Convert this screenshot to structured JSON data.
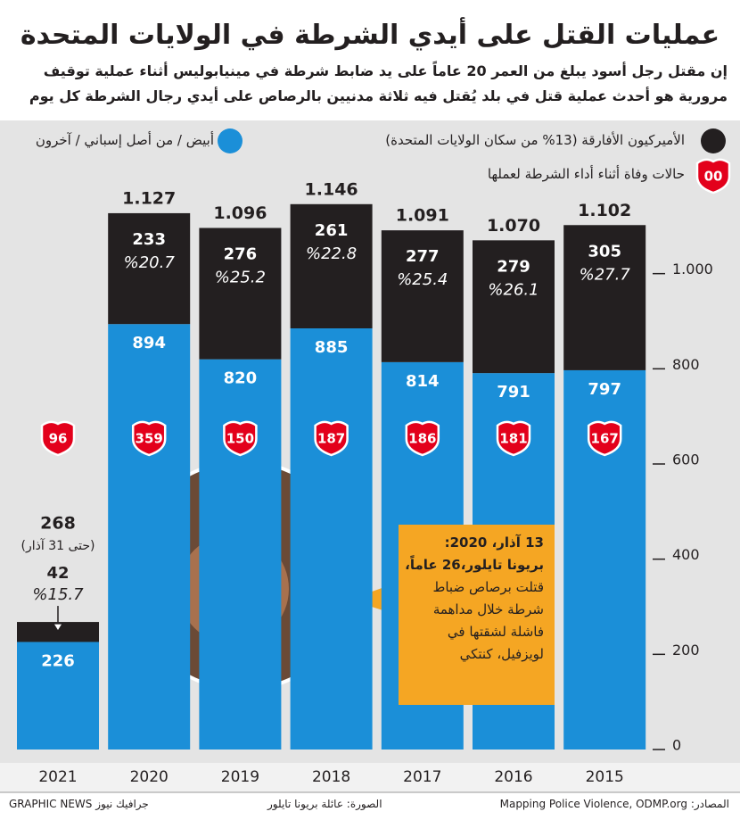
{
  "chart_data": {
    "type": "stacked-bar",
    "title": "عمليات القتل على أيدي الشرطة في الولايات المتحدة",
    "subtitle": [
      "إن مقتل رجل أسود يبلغ من العمر 20 عاماً على يد ضابط شرطة في مينيابوليس أثناء عملية توقيف",
      "مرورية هو أحدث عملية قتل في بلد يُقتل فيه ثلاثة مدنيين بالرصاص على أيدي رجال الشرطة كل يوم"
    ],
    "categories": [
      "2015",
      "2016",
      "2017",
      "2018",
      "2019",
      "2020",
      "2021"
    ],
    "series": [
      {
        "name": "أبيض / من أصل إسباني / آخرون",
        "color": "#1b8fd8",
        "values": [
          797,
          791,
          814,
          885,
          820,
          894,
          226
        ]
      },
      {
        "name": "الأميركيون الأفارقة (13% من سكان الولايات المتحدة)",
        "color": "#231f20",
        "values": [
          305,
          279,
          277,
          261,
          276,
          233,
          42
        ],
        "shares": [
          27.7,
          26.1,
          25.4,
          22.8,
          25.2,
          20.7,
          15.7
        ],
        "share_labels": [
          "%27.7",
          "%26.1",
          "%25.4",
          "%22.8",
          "%25.2",
          "%20.7",
          "%15.7"
        ]
      }
    ],
    "totals": {
      "values": [
        1102,
        1070,
        1091,
        1146,
        1096,
        1127,
        268
      ],
      "value_labels": [
        "1.102",
        "1.070",
        "1.091",
        "1.146",
        "1.096",
        "1.127",
        "268"
      ]
    },
    "annotations": [
      {
        "text": "(حتى 31 آذار)",
        "category": "2021"
      }
    ],
    "officer_deaths": {
      "name": "حالات وفاة أثناء أداء الشرطة لعملها",
      "legend_label": "00",
      "color": "#e3001b",
      "values": [
        167,
        181,
        186,
        187,
        150,
        359,
        96
      ]
    },
    "ylim": [
      0,
      1200
    ],
    "yticks": [
      0,
      200,
      400,
      600,
      800,
      {
        "value": 1000,
        "label": "1.000"
      }
    ],
    "callout": [
      "13 آذار، 2020:",
      "بريونا تايلور،26 عاماً،",
      "قتلت برصاص ضباط",
      "شرطة خلال مداهمة",
      "فاشلة لشقتها في",
      "لويزفيل، كنتكي"
    ],
    "footer": {
      "source": "المصادر: Mapping Police Violence, ODMP.org",
      "photo": "الصورة: عائلة بريونا تايلور",
      "credit": "GRAPHIC NEWS جرافيك نيوز"
    }
  }
}
